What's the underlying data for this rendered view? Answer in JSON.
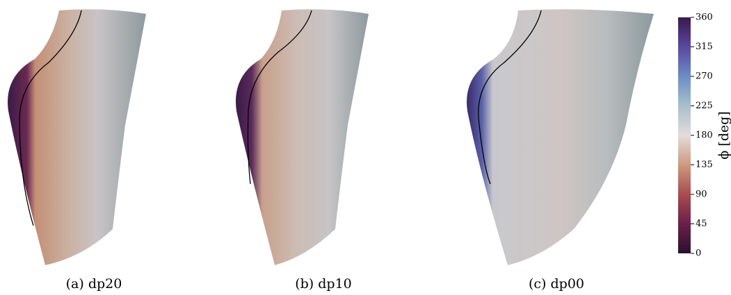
{
  "panels": [
    {
      "caption": "(a) dp20"
    },
    {
      "caption": "(b) dp10"
    },
    {
      "caption": "(c) dp00"
    }
  ],
  "colorbar": {
    "label": "ϕ [deg]",
    "lim": [
      0,
      360
    ],
    "ticks": [
      0,
      45,
      90,
      135,
      180,
      225,
      270,
      315,
      360
    ]
  }
}
